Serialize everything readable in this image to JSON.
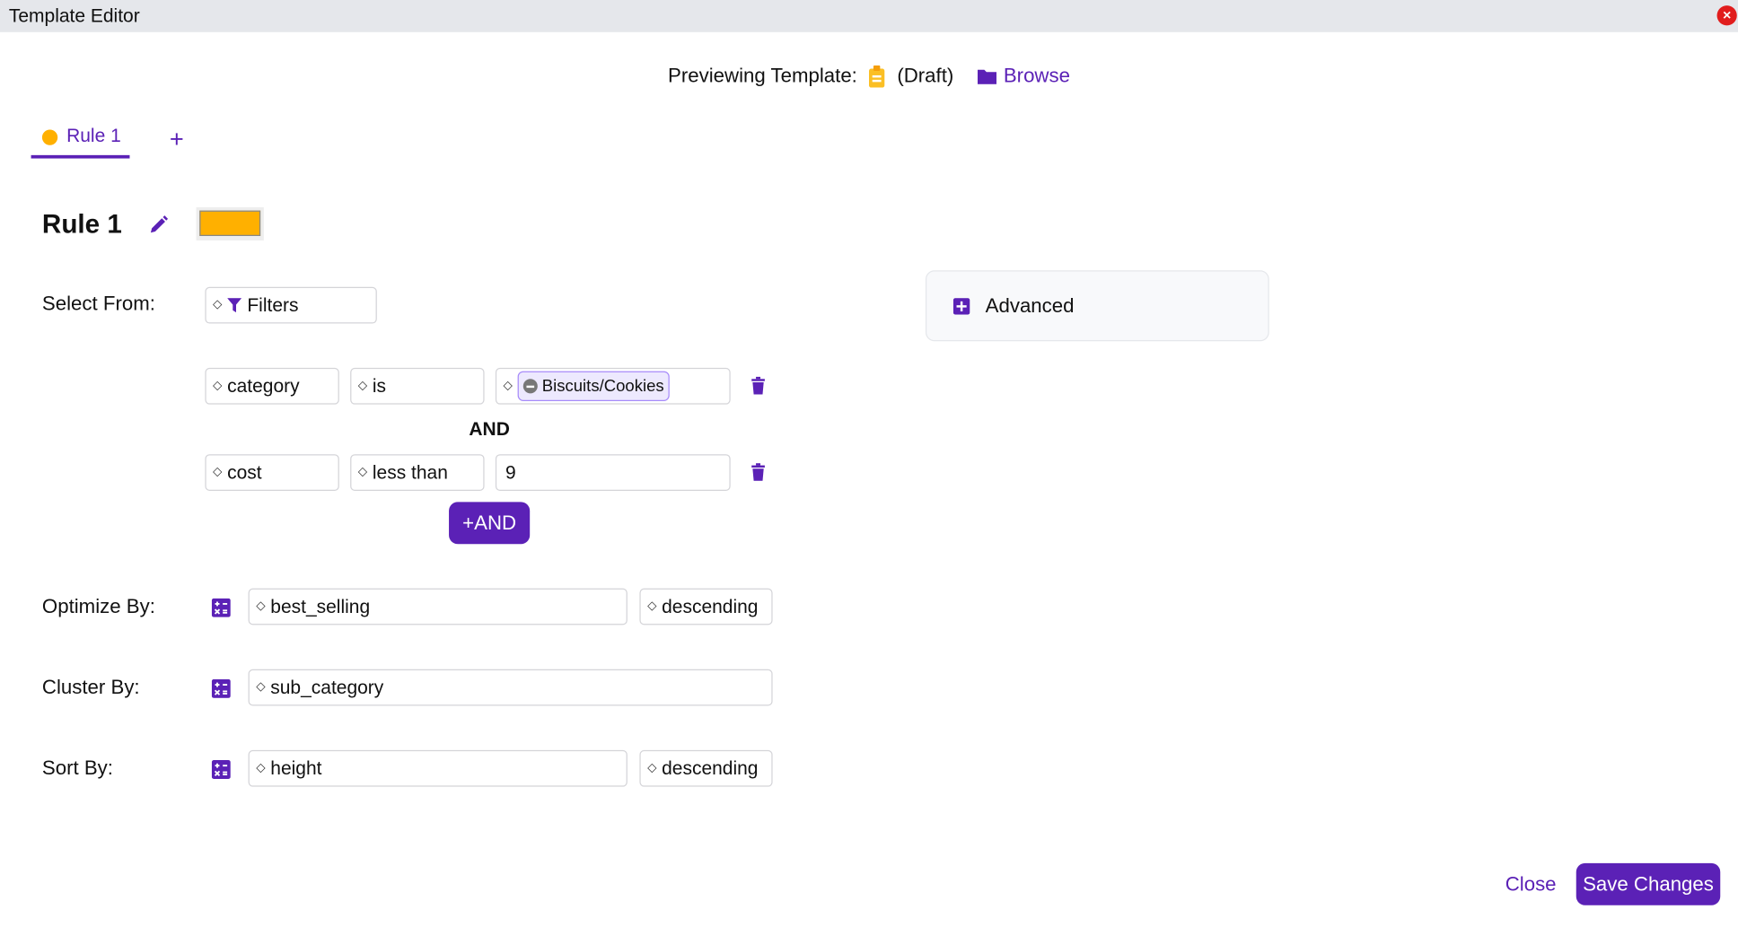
{
  "window": {
    "title": "Template Editor",
    "close_icon": "close-icon"
  },
  "header": {
    "prefix": "Previewing Template:",
    "status": "(Draft)",
    "browse": "Browse"
  },
  "tabs": [
    {
      "label": "Rule 1",
      "color": "#ffb000"
    }
  ],
  "rule": {
    "title": "Rule 1",
    "color": "#ffb000"
  },
  "select_from": {
    "label": "Select From:",
    "value": "Filters"
  },
  "filters": [
    {
      "field": "category",
      "operator": "is",
      "value": "Biscuits/Cookies"
    },
    {
      "field": "cost",
      "operator": "less than",
      "value": "9"
    }
  ],
  "and_label": "AND",
  "add_and": "+AND",
  "optimize": {
    "label": "Optimize By:",
    "field": "best_selling",
    "order": "descending"
  },
  "cluster": {
    "label": "Cluster By:",
    "field": "sub_category"
  },
  "sort": {
    "label": "Sort By:",
    "field": "height",
    "order": "descending"
  },
  "advanced": {
    "label": "Advanced"
  },
  "footer": {
    "close": "Close",
    "save": "Save Changes"
  },
  "colors": {
    "accent": "#5b21b6",
    "rule": "#ffb000",
    "danger": "#e11d1d"
  }
}
